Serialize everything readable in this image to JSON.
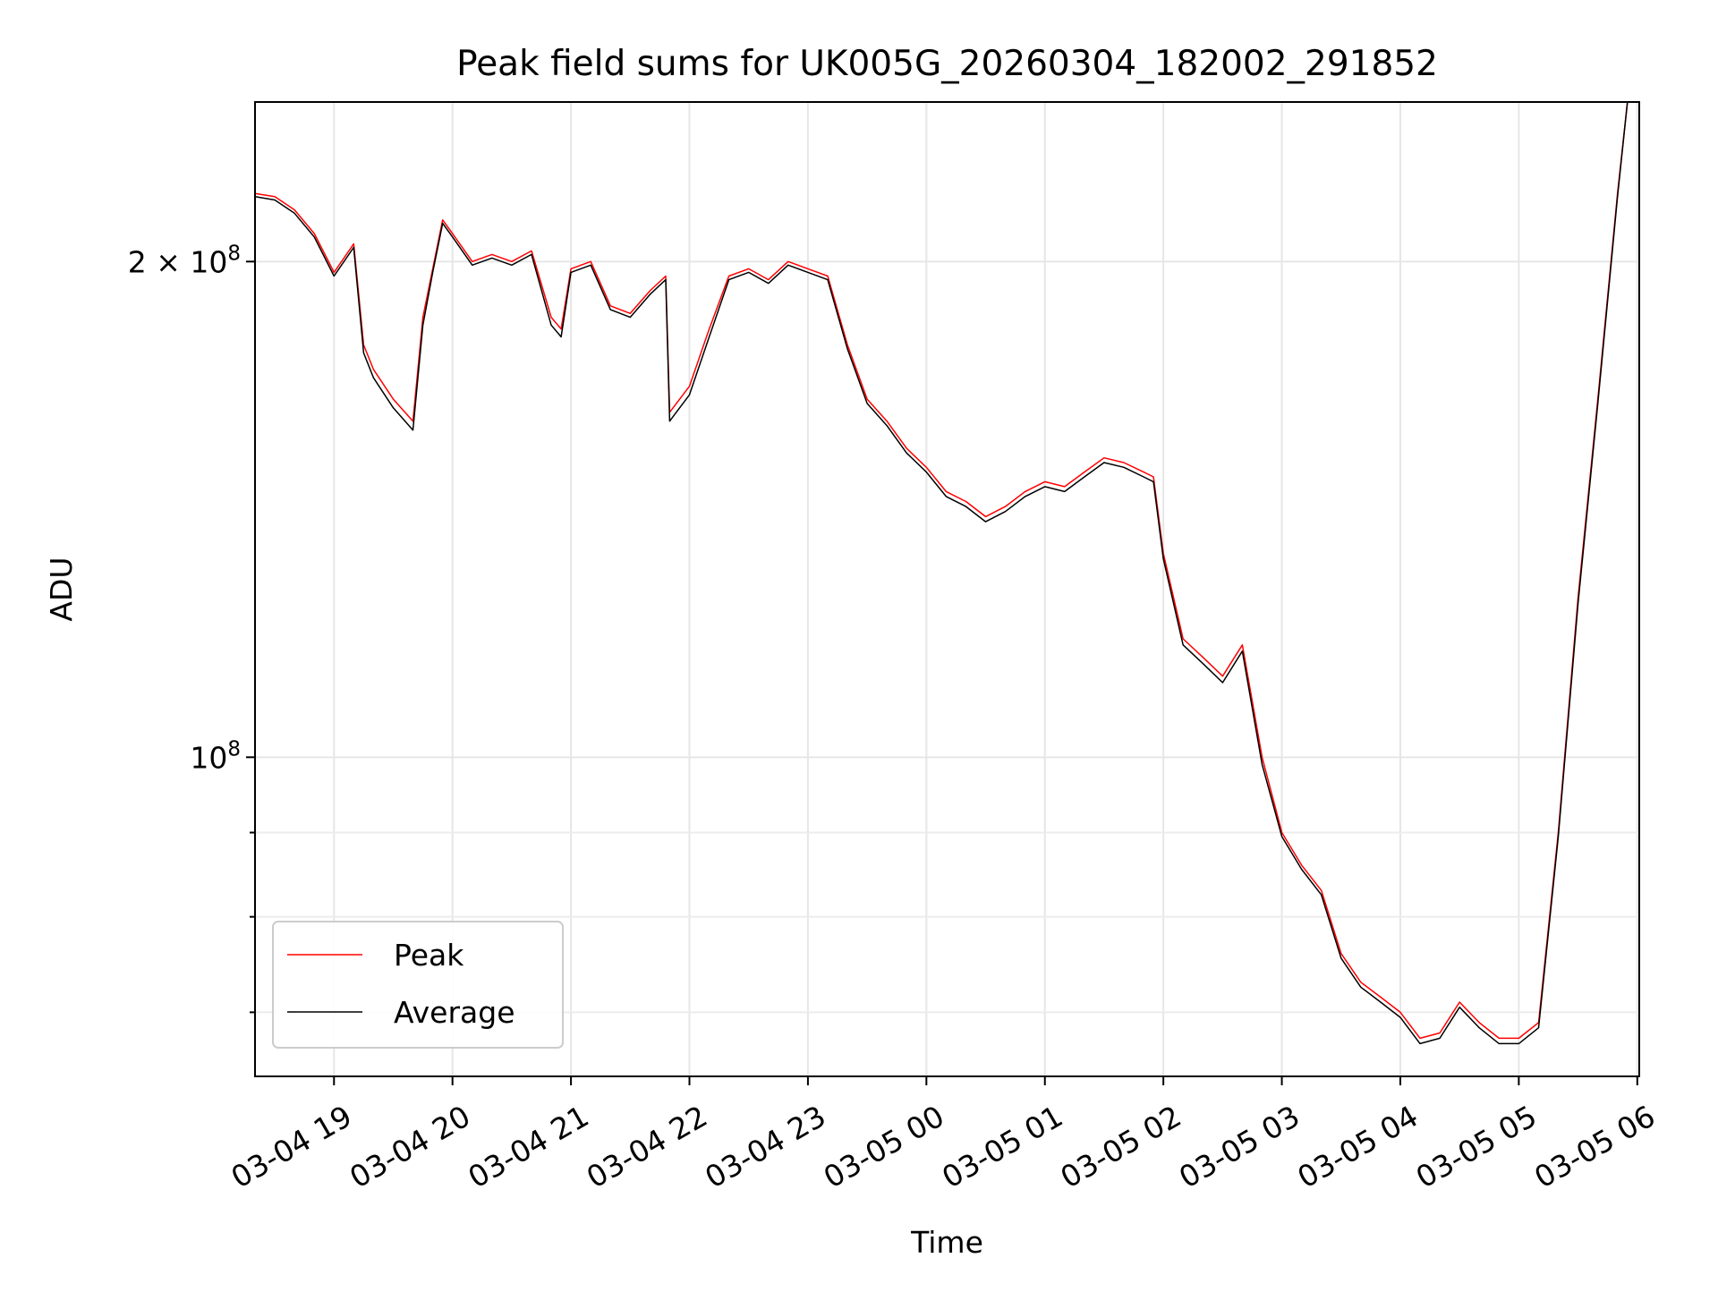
{
  "chart_data": {
    "type": "line",
    "title": "Peak field sums for UK005G_20260304_182002_291852",
    "xlabel": "Time",
    "ylabel": "ADU",
    "y_scale": "log",
    "ylim": [
      64000000,
      250000000
    ],
    "xlim": [
      "2026-03-04 18:20",
      "2026-03-05 06:01"
    ],
    "x_ticks": [
      {
        "t": "2026-03-04 19:00",
        "label": "03-04 19"
      },
      {
        "t": "2026-03-04 20:00",
        "label": "03-04 20"
      },
      {
        "t": "2026-03-04 21:00",
        "label": "03-04 21"
      },
      {
        "t": "2026-03-04 22:00",
        "label": "03-04 22"
      },
      {
        "t": "2026-03-04 23:00",
        "label": "03-04 23"
      },
      {
        "t": "2026-03-05 00:00",
        "label": "03-05 00"
      },
      {
        "t": "2026-03-05 01:00",
        "label": "03-05 01"
      },
      {
        "t": "2026-03-05 02:00",
        "label": "03-05 02"
      },
      {
        "t": "2026-03-05 03:00",
        "label": "03-05 03"
      },
      {
        "t": "2026-03-05 04:00",
        "label": "03-05 04"
      },
      {
        "t": "2026-03-05 05:00",
        "label": "03-05 05"
      },
      {
        "t": "2026-03-05 06:00",
        "label": "03-05 06"
      }
    ],
    "y_ticks": [
      {
        "value": 200000000,
        "label_base": "2 × 10",
        "label_exp": "8"
      },
      {
        "value": 100000000,
        "label_base": "10",
        "label_exp": "8"
      }
    ],
    "y_minor_ticks": [
      70000000,
      80000000,
      90000000
    ],
    "grid": true,
    "legend_position": "lower-left",
    "series": [
      {
        "name": "Peak",
        "color": "#ff0000",
        "x": [
          "2026-03-04 18:20",
          "2026-03-04 18:30",
          "2026-03-04 18:40",
          "2026-03-04 18:50",
          "2026-03-04 19:00",
          "2026-03-04 19:10",
          "2026-03-04 19:15",
          "2026-03-04 19:20",
          "2026-03-04 19:30",
          "2026-03-04 19:40",
          "2026-03-04 19:45",
          "2026-03-04 19:50",
          "2026-03-04 19:55",
          "2026-03-04 20:00",
          "2026-03-04 20:10",
          "2026-03-04 20:20",
          "2026-03-04 20:30",
          "2026-03-04 20:40",
          "2026-03-04 20:50",
          "2026-03-04 20:55",
          "2026-03-04 21:00",
          "2026-03-04 21:10",
          "2026-03-04 21:20",
          "2026-03-04 21:30",
          "2026-03-04 21:40",
          "2026-03-04 21:48",
          "2026-03-04 21:50",
          "2026-03-04 22:00",
          "2026-03-04 22:10",
          "2026-03-04 22:20",
          "2026-03-04 22:30",
          "2026-03-04 22:40",
          "2026-03-04 22:50",
          "2026-03-04 23:00",
          "2026-03-04 23:10",
          "2026-03-04 23:20",
          "2026-03-04 23:30",
          "2026-03-04 23:40",
          "2026-03-04 23:50",
          "2026-03-05 00:00",
          "2026-03-05 00:10",
          "2026-03-05 00:20",
          "2026-03-05 00:30",
          "2026-03-05 00:40",
          "2026-03-05 00:50",
          "2026-03-05 01:00",
          "2026-03-05 01:10",
          "2026-03-05 01:20",
          "2026-03-05 01:30",
          "2026-03-05 01:40",
          "2026-03-05 01:50",
          "2026-03-05 01:55",
          "2026-03-05 02:00",
          "2026-03-05 02:10",
          "2026-03-05 02:20",
          "2026-03-05 02:30",
          "2026-03-05 02:40",
          "2026-03-05 02:50",
          "2026-03-05 03:00",
          "2026-03-05 03:10",
          "2026-03-05 03:20",
          "2026-03-05 03:30",
          "2026-03-05 03:40",
          "2026-03-05 03:50",
          "2026-03-05 04:00",
          "2026-03-05 04:10",
          "2026-03-05 04:20",
          "2026-03-05 04:30",
          "2026-03-05 04:40",
          "2026-03-05 04:50",
          "2026-03-05 05:00",
          "2026-03-05 05:10",
          "2026-03-05 05:20",
          "2026-03-05 05:30",
          "2026-03-05 05:40",
          "2026-03-05 05:50",
          "2026-03-05 05:55"
        ],
        "values": [
          220000000,
          219000000,
          215000000,
          208000000,
          197000000,
          205000000,
          178000000,
          172000000,
          165000000,
          160000000,
          185000000,
          198000000,
          212000000,
          208000000,
          200000000,
          202000000,
          200000000,
          203000000,
          185000000,
          182000000,
          198000000,
          200000000,
          188000000,
          186000000,
          192000000,
          196000000,
          162000000,
          168000000,
          182000000,
          196000000,
          198000000,
          195000000,
          200000000,
          198000000,
          196000000,
          178000000,
          165000000,
          160000000,
          154000000,
          150000000,
          145000000,
          143000000,
          140000000,
          142000000,
          145000000,
          147000000,
          146000000,
          149000000,
          152000000,
          151000000,
          149000000,
          148000000,
          133000000,
          118000000,
          115000000,
          112000000,
          117000000,
          100000000,
          90000000,
          86000000,
          83000000,
          76000000,
          73000000,
          71500000,
          70000000,
          67500000,
          68000000,
          71000000,
          69000000,
          67500000,
          67500000,
          69000000,
          90000000,
          125000000,
          165000000,
          220000000,
          250000000
        ]
      },
      {
        "name": "Average",
        "color": "#000000",
        "x": [
          "2026-03-04 18:20",
          "2026-03-04 18:30",
          "2026-03-04 18:40",
          "2026-03-04 18:50",
          "2026-03-04 19:00",
          "2026-03-04 19:10",
          "2026-03-04 19:15",
          "2026-03-04 19:20",
          "2026-03-04 19:30",
          "2026-03-04 19:40",
          "2026-03-04 19:45",
          "2026-03-04 19:50",
          "2026-03-04 19:55",
          "2026-03-04 20:00",
          "2026-03-04 20:10",
          "2026-03-04 20:20",
          "2026-03-04 20:30",
          "2026-03-04 20:40",
          "2026-03-04 20:50",
          "2026-03-04 20:55",
          "2026-03-04 21:00",
          "2026-03-04 21:10",
          "2026-03-04 21:20",
          "2026-03-04 21:30",
          "2026-03-04 21:40",
          "2026-03-04 21:48",
          "2026-03-04 21:50",
          "2026-03-04 22:00",
          "2026-03-04 22:10",
          "2026-03-04 22:20",
          "2026-03-04 22:30",
          "2026-03-04 22:40",
          "2026-03-04 22:50",
          "2026-03-04 23:00",
          "2026-03-04 23:10",
          "2026-03-04 23:20",
          "2026-03-04 23:30",
          "2026-03-04 23:40",
          "2026-03-04 23:50",
          "2026-03-05 00:00",
          "2026-03-05 00:10",
          "2026-03-05 00:20",
          "2026-03-05 00:30",
          "2026-03-05 00:40",
          "2026-03-05 00:50",
          "2026-03-05 01:00",
          "2026-03-05 01:10",
          "2026-03-05 01:20",
          "2026-03-05 01:30",
          "2026-03-05 01:40",
          "2026-03-05 01:50",
          "2026-03-05 01:55",
          "2026-03-05 02:00",
          "2026-03-05 02:10",
          "2026-03-05 02:20",
          "2026-03-05 02:30",
          "2026-03-05 02:40",
          "2026-03-05 02:50",
          "2026-03-05 03:00",
          "2026-03-05 03:10",
          "2026-03-05 03:20",
          "2026-03-05 03:30",
          "2026-03-05 03:40",
          "2026-03-05 03:50",
          "2026-03-05 04:00",
          "2026-03-05 04:10",
          "2026-03-05 04:20",
          "2026-03-05 04:30",
          "2026-03-05 04:40",
          "2026-03-05 04:50",
          "2026-03-05 05:00",
          "2026-03-05 05:10",
          "2026-03-05 05:20",
          "2026-03-05 05:30",
          "2026-03-05 05:40",
          "2026-03-05 05:50",
          "2026-03-05 05:55"
        ],
        "values": [
          219000000,
          218000000,
          214000000,
          207000000,
          196000000,
          204000000,
          176000000,
          170000000,
          163000000,
          158000000,
          183000000,
          197000000,
          211000000,
          207000000,
          199000000,
          201000000,
          199000000,
          202000000,
          183000000,
          180000000,
          197000000,
          199000000,
          187000000,
          185000000,
          191000000,
          195000000,
          160000000,
          166000000,
          180000000,
          195000000,
          197000000,
          194000000,
          199000000,
          197000000,
          195000000,
          177000000,
          164000000,
          159000000,
          153000000,
          149000000,
          144000000,
          142000000,
          139000000,
          141000000,
          144000000,
          146000000,
          145000000,
          148000000,
          151000000,
          150000000,
          148000000,
          147000000,
          132000000,
          117000000,
          114000000,
          111000000,
          116000000,
          99000000,
          89500000,
          85500000,
          82500000,
          75500000,
          72500000,
          71000000,
          69500000,
          67000000,
          67500000,
          70500000,
          68500000,
          67000000,
          67000000,
          68500000,
          89500000,
          124000000,
          164000000,
          219000000,
          250000000
        ]
      }
    ]
  }
}
